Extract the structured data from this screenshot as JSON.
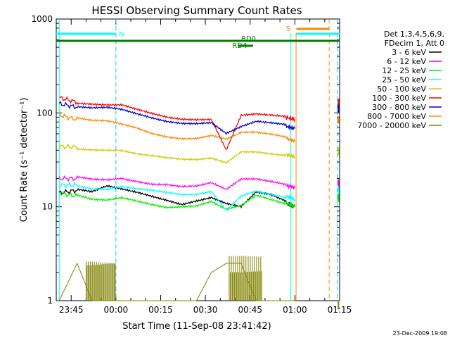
{
  "chart_data": {
    "type": "line",
    "title": "HESSI Observing Summary Count Rates",
    "xlabel": "Start Time (11-Sep-08 23:41:42)",
    "ylabel": "Count Rate (s⁻¹ detector⁻¹)",
    "yscale": "log",
    "ylim": [
      1,
      1000
    ],
    "xlim_minutes": [
      -2,
      93
    ],
    "y_ticks": [
      "1",
      "10",
      "100",
      "1000"
    ],
    "x_ticks": [
      {
        "label": "23:45",
        "t": 3
      },
      {
        "label": "00:00",
        "t": 18
      },
      {
        "label": "00:15",
        "t": 33
      },
      {
        "label": "00:30",
        "t": 48
      },
      {
        "label": "00:45",
        "t": 63
      },
      {
        "label": "01:00",
        "t": 78
      },
      {
        "label": "01:15",
        "t": 93
      }
    ],
    "legend": {
      "position": "right",
      "header": [
        "Det 1,3,4,5,6,9,",
        "FDecim 1, Att 0"
      ],
      "entries": [
        {
          "label": "3 - 6 keV",
          "color": "#000000"
        },
        {
          "label": "6 - 12 keV",
          "color": "#ff00ff"
        },
        {
          "label": "12 - 25 keV",
          "color": "#00ee00"
        },
        {
          "label": "25 - 50 keV",
          "color": "#00ffff"
        },
        {
          "label": "50 - 100 keV",
          "color": "#cccc00"
        },
        {
          "label": "100 - 300 keV",
          "color": "#ff0000"
        },
        {
          "label": "300 - 800 keV",
          "color": "#0000cc"
        },
        {
          "label": "800 - 7000 keV",
          "color": "#ff8800"
        },
        {
          "label": "7000 - 20000 keV",
          "color": "#808000"
        }
      ]
    },
    "t_minutes": [
      -1,
      5,
      10,
      15,
      20,
      25,
      30,
      35,
      40,
      45,
      50,
      55,
      60,
      65,
      70,
      75,
      78
    ],
    "series": [
      {
        "name": "3 - 6 keV",
        "color": "#000000",
        "values": [
          14,
          15,
          14,
          16,
          15,
          14,
          13,
          12,
          11,
          12,
          13,
          11,
          10,
          14,
          13,
          11,
          10
        ]
      },
      {
        "name": "6 - 12 keV",
        "color": "#ff00ff",
        "values": [
          20,
          20,
          19,
          19,
          20,
          19,
          18,
          18,
          17,
          17,
          18,
          15,
          19,
          19,
          18,
          17,
          16
        ]
      },
      {
        "name": "12 - 25 keV",
        "color": "#00ee00",
        "values": [
          14,
          13,
          12,
          12,
          13,
          12,
          11,
          10,
          10,
          10,
          11,
          9,
          10,
          13,
          12,
          11,
          10
        ]
      },
      {
        "name": "25 - 50 keV",
        "color": "#00ffff",
        "values": [
          17,
          17,
          16,
          16,
          17,
          16,
          15,
          14,
          13,
          13,
          14,
          9,
          13,
          15,
          14,
          13,
          12
        ]
      },
      {
        "name": "50 - 100 keV",
        "color": "#cccc00",
        "values": [
          44,
          43,
          42,
          41,
          40,
          36,
          34,
          32,
          31,
          31,
          33,
          30,
          40,
          40,
          38,
          36,
          34
        ]
      },
      {
        "name": "100 - 300 keV",
        "color": "#ff0000",
        "values": [
          145,
          130,
          125,
          120,
          118,
          105,
          95,
          88,
          85,
          86,
          88,
          42,
          98,
          100,
          95,
          90,
          85
        ]
      },
      {
        "name": "300 - 800 keV",
        "color": "#0000cc",
        "values": [
          125,
          115,
          110,
          110,
          105,
          95,
          88,
          82,
          80,
          80,
          82,
          62,
          72,
          80,
          76,
          72,
          68
        ]
      },
      {
        "name": "800 - 7000 keV",
        "color": "#ff8800",
        "values": [
          95,
          85,
          80,
          80,
          75,
          70,
          62,
          58,
          55,
          55,
          58,
          52,
          60,
          60,
          57,
          54,
          50
        ]
      },
      {
        "name": "7000 - 20000 keV",
        "color": "#808000",
        "values": [
          1,
          2.5,
          1,
          1,
          1,
          1,
          1,
          1,
          1,
          1,
          2,
          2.5,
          2.5,
          1,
          1,
          1,
          1
        ]
      }
    ],
    "annotations": [
      {
        "text": "N",
        "color": "#00ffff"
      },
      {
        "text": "S",
        "color": "#ff8800"
      },
      {
        "text": "RD0",
        "color": "#008000"
      },
      {
        "text": "RD4",
        "color": "#008000"
      }
    ],
    "footer": "23-Dec-2009 19:08"
  }
}
